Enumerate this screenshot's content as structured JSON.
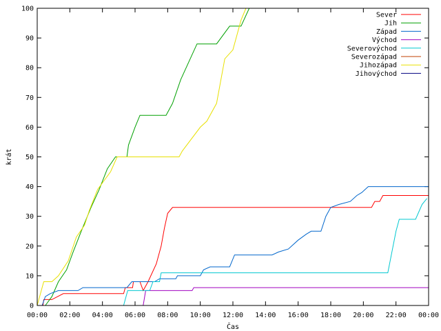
{
  "chart_data": {
    "type": "line",
    "xlabel": "Čas",
    "ylabel": "krát",
    "xlim": [
      0,
      24
    ],
    "ylim": [
      0,
      100
    ],
    "x_ticks": [
      {
        "h": 0,
        "label": "00:00"
      },
      {
        "h": 2,
        "label": "02:00"
      },
      {
        "h": 4,
        "label": "04:00"
      },
      {
        "h": 6,
        "label": "06:00"
      },
      {
        "h": 8,
        "label": "08:00"
      },
      {
        "h": 10,
        "label": "10:00"
      },
      {
        "h": 12,
        "label": "12:00"
      },
      {
        "h": 14,
        "label": "14:00"
      },
      {
        "h": 16,
        "label": "16:00"
      },
      {
        "h": 18,
        "label": "18:00"
      },
      {
        "h": 20,
        "label": "20:00"
      },
      {
        "h": 22,
        "label": "22:00"
      },
      {
        "h": 24,
        "label": "00:00"
      }
    ],
    "y_ticks": [
      0,
      10,
      20,
      30,
      40,
      50,
      60,
      70,
      80,
      90,
      100
    ],
    "grid": false,
    "legend_position": "top-right",
    "series": [
      {
        "name": "Sever",
        "color": "#ff0000",
        "points": [
          [
            0.35,
            0
          ],
          [
            0.4,
            2
          ],
          [
            0.9,
            2
          ],
          [
            1.6,
            4
          ],
          [
            5.3,
            4
          ],
          [
            5.4,
            6
          ],
          [
            5.85,
            6
          ],
          [
            5.9,
            8
          ],
          [
            6.3,
            8
          ],
          [
            6.5,
            5
          ],
          [
            6.8,
            8
          ],
          [
            7.3,
            14
          ],
          [
            7.6,
            20
          ],
          [
            7.8,
            26
          ],
          [
            8.0,
            31
          ],
          [
            8.3,
            33
          ],
          [
            20.5,
            33
          ],
          [
            20.7,
            35
          ],
          [
            21.0,
            35
          ],
          [
            21.2,
            37
          ],
          [
            24,
            37
          ]
        ]
      },
      {
        "name": "Jih",
        "color": "#00a000",
        "points": [
          [
            0.5,
            0
          ],
          [
            0.9,
            3
          ],
          [
            1.3,
            8
          ],
          [
            1.8,
            12
          ],
          [
            2.2,
            18
          ],
          [
            2.7,
            25
          ],
          [
            3.3,
            33
          ],
          [
            3.8,
            39
          ],
          [
            4.3,
            46
          ],
          [
            4.8,
            50
          ],
          [
            5.5,
            50
          ],
          [
            5.6,
            54
          ],
          [
            6.0,
            60
          ],
          [
            6.3,
            64
          ],
          [
            7.9,
            64
          ],
          [
            8.3,
            68
          ],
          [
            8.8,
            76
          ],
          [
            9.3,
            82
          ],
          [
            9.8,
            88
          ],
          [
            11.0,
            88
          ],
          [
            11.8,
            94
          ],
          [
            12.5,
            94
          ],
          [
            13.0,
            100
          ]
        ]
      },
      {
        "name": "Západ",
        "color": "#0066cc",
        "points": [
          [
            0.3,
            0
          ],
          [
            0.5,
            3
          ],
          [
            0.8,
            4
          ],
          [
            1.3,
            5
          ],
          [
            2.5,
            5
          ],
          [
            2.8,
            6
          ],
          [
            5.5,
            6
          ],
          [
            5.8,
            8
          ],
          [
            7.2,
            8
          ],
          [
            7.5,
            9
          ],
          [
            8.5,
            9
          ],
          [
            8.6,
            10
          ],
          [
            10.0,
            10
          ],
          [
            10.2,
            12
          ],
          [
            10.6,
            13
          ],
          [
            11.8,
            13
          ],
          [
            12.1,
            17
          ],
          [
            14.4,
            17
          ],
          [
            14.8,
            18
          ],
          [
            15.4,
            19
          ],
          [
            16.0,
            22
          ],
          [
            16.5,
            24
          ],
          [
            16.8,
            25
          ],
          [
            17.4,
            25
          ],
          [
            17.7,
            30
          ],
          [
            18.0,
            33
          ],
          [
            18.5,
            34
          ],
          [
            19.2,
            35
          ],
          [
            19.6,
            37
          ],
          [
            19.9,
            38
          ],
          [
            20.3,
            40
          ],
          [
            24,
            40
          ]
        ]
      },
      {
        "name": "Východ",
        "color": "#a000c0",
        "points": [
          [
            6.5,
            0
          ],
          [
            6.65,
            5
          ],
          [
            9.5,
            5
          ],
          [
            9.6,
            6
          ],
          [
            24,
            6
          ]
        ]
      },
      {
        "name": "Severovýchod",
        "color": "#00c8d0",
        "points": [
          [
            5.3,
            0
          ],
          [
            5.55,
            5
          ],
          [
            6.9,
            5
          ],
          [
            7.1,
            8
          ],
          [
            7.5,
            8
          ],
          [
            7.6,
            11
          ],
          [
            21.5,
            11
          ],
          [
            22.0,
            25
          ],
          [
            22.2,
            29
          ],
          [
            23.2,
            29
          ],
          [
            23.6,
            34
          ],
          [
            23.9,
            36
          ]
        ]
      },
      {
        "name": "Severozápad",
        "color": "#c04000",
        "points": []
      },
      {
        "name": "Jihozápad",
        "color": "#e8e000",
        "points": [
          [
            0,
            0
          ],
          [
            0.3,
            6
          ],
          [
            0.4,
            8
          ],
          [
            0.9,
            8
          ],
          [
            1.3,
            10
          ],
          [
            1.9,
            15
          ],
          [
            2.4,
            23
          ],
          [
            2.9,
            27
          ],
          [
            3.2,
            32
          ],
          [
            3.7,
            39
          ],
          [
            4.1,
            42
          ],
          [
            4.5,
            45
          ],
          [
            4.9,
            50
          ],
          [
            8.7,
            50
          ],
          [
            8.9,
            52
          ],
          [
            10.0,
            60
          ],
          [
            10.4,
            62
          ],
          [
            11.0,
            68
          ],
          [
            11.5,
            83
          ],
          [
            12.0,
            86
          ],
          [
            12.5,
            96
          ],
          [
            12.8,
            100
          ]
        ]
      },
      {
        "name": "Jihovýchod",
        "color": "#000080",
        "points": []
      }
    ]
  }
}
